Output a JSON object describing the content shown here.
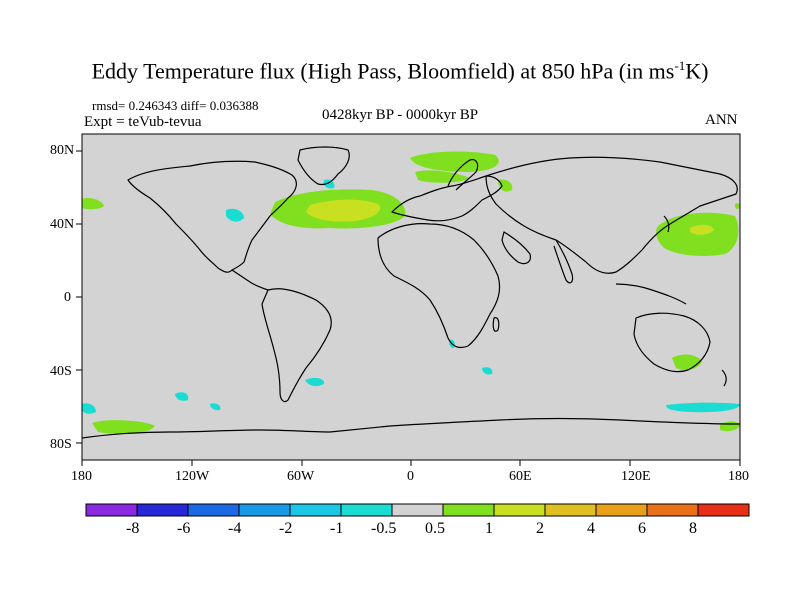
{
  "header": {
    "title_main": "Eddy Temperature flux (High Pass, Bloomfield) at 850 hPa (in ms",
    "title_sup": "-1",
    "title_end": "K)",
    "stats": "rmsd= 0.246343 diff= 0.036388",
    "experiment": "Expt = teVub-tevua",
    "period": "0428kyr BP - 0000kyr BP",
    "season": "ANN"
  },
  "axes": {
    "lat_labels": [
      "80N",
      "40N",
      "0",
      "40S",
      "80S"
    ],
    "lon_labels": [
      "180",
      "120W",
      "60W",
      "0",
      "60E",
      "120E",
      "180"
    ]
  },
  "colorbar": {
    "colors": [
      "#8a2be2",
      "#2828d8",
      "#1a6ae6",
      "#1a9ae6",
      "#1ac8e6",
      "#1adcd2",
      "#d3d3d3",
      "#80e020",
      "#c8e020",
      "#e0c020",
      "#e8a018",
      "#e87018",
      "#e83018"
    ],
    "labels": [
      "-8",
      "-6",
      "-4",
      "-2",
      "-1",
      "-0.5",
      "0.5",
      "1",
      "2",
      "4",
      "6",
      "8"
    ]
  },
  "map_style": {
    "background": "#d3d3d3",
    "coast": "#000000"
  }
}
